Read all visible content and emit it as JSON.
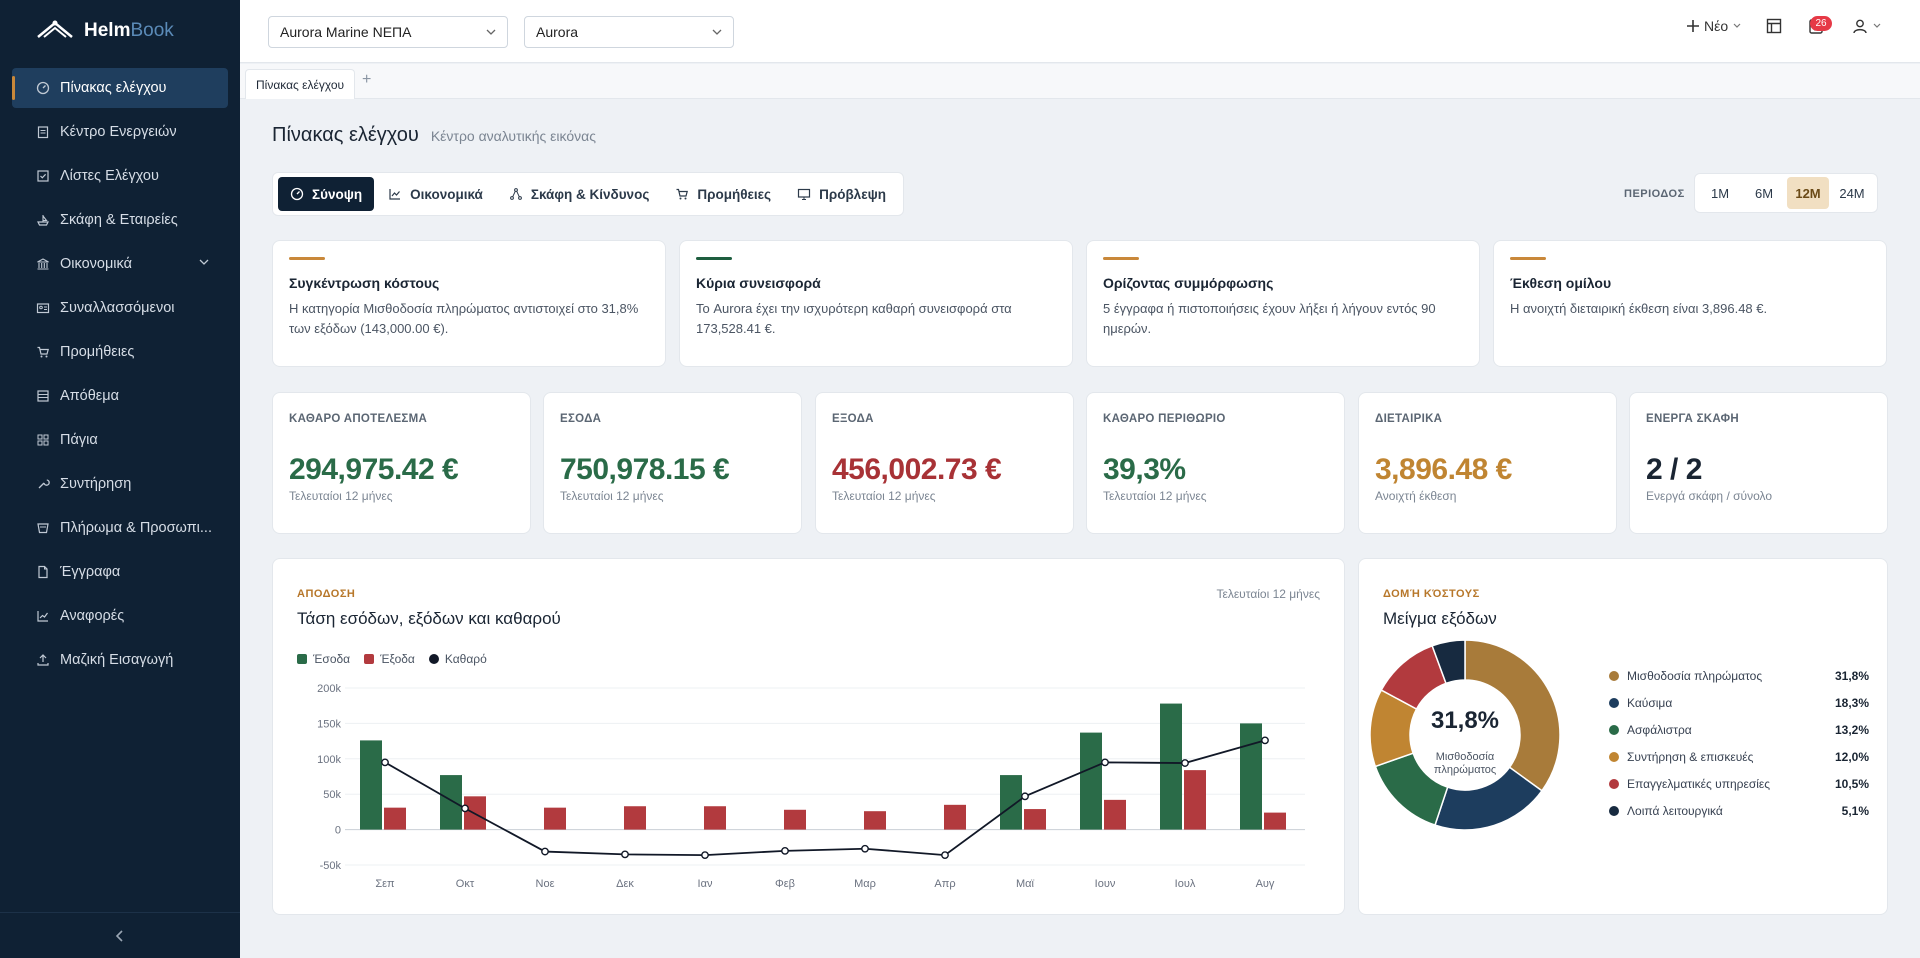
{
  "brand": {
    "name1": "Helm",
    "name2": "Book"
  },
  "sidebar": {
    "items": [
      {
        "label": "Πίνακας ελέγχου",
        "icon": "gauge-icon",
        "active": true
      },
      {
        "label": "Κέντρο Ενεργειών",
        "icon": "clipboard-icon"
      },
      {
        "label": "Λίστες Ελέγχου",
        "icon": "checkbox-icon"
      },
      {
        "label": "Σκάφη & Εταιρείες",
        "icon": "ship-icon"
      },
      {
        "label": "Οικονομικά",
        "icon": "bank-icon",
        "expandable": true
      },
      {
        "label": "Συναλλασσόμενοι",
        "icon": "contact-card-icon"
      },
      {
        "label": "Προμήθειες",
        "icon": "cart-icon"
      },
      {
        "label": "Απόθεμα",
        "icon": "inventory-icon"
      },
      {
        "label": "Πάγια",
        "icon": "grid-icon"
      },
      {
        "label": "Συντήρηση",
        "icon": "wrench-icon"
      },
      {
        "label": "Πλήρωμα & Προσωπι...",
        "icon": "users-icon"
      },
      {
        "label": "Έγγραφα",
        "icon": "document-icon"
      },
      {
        "label": "Αναφορές",
        "icon": "report-chart-icon"
      },
      {
        "label": "Μαζική Εισαγωγή",
        "icon": "upload-icon"
      }
    ]
  },
  "topbar": {
    "company": "Aurora Marine ΝΕΠΑ",
    "vessel": "Aurora",
    "new_label": "Νέο",
    "notifications": "26"
  },
  "tabs": {
    "open": [
      "Πίνακας ελέγχου"
    ],
    "add": "+"
  },
  "page": {
    "title": "Πίνακας ελέγχου",
    "subtitle": "Κέντρο αναλυτικής εικόνας"
  },
  "views": [
    {
      "label": "Σύνοψη",
      "icon": "gauge-icon",
      "active": true
    },
    {
      "label": "Οικονομικά",
      "icon": "line-chart-icon"
    },
    {
      "label": "Σκάφη & Κίνδυνος",
      "icon": "network-icon"
    },
    {
      "label": "Προμήθειες",
      "icon": "cart-icon"
    },
    {
      "label": "Πρόβλεψη",
      "icon": "monitor-icon"
    }
  ],
  "period": {
    "label": "ΠΕΡΙΟΔΟΣ",
    "options": [
      "1M",
      "6M",
      "12M",
      "24M"
    ],
    "selected": "12M"
  },
  "insights": [
    {
      "title": "Συγκέντρωση κόστους",
      "text": "Η κατηγορία Μισθοδοσία πληρώματος αντιστοιχεί στο 31,8% των εξόδων (143,000.00 €).",
      "accent": "#c9883a"
    },
    {
      "title": "Κύρια συνεισφορά",
      "text": "Το Aurora έχει την ισχυρότερη καθαρή συνεισφορά στα 173,528.41 €.",
      "accent": "#1e5e3f"
    },
    {
      "title": "Ορίζοντας συμμόρφωσης",
      "text": "5 έγγραφα ή πιστοποιήσεις έχουν λήξει ή λήγουν εντός 90 ημερών.",
      "accent": "#c9883a"
    },
    {
      "title": "Έκθεση ομίλου",
      "text": "Η ανοιχτή διεταιρική έκθεση είναι 3,896.48 €.",
      "accent": "#c9883a"
    }
  ],
  "kpis": [
    {
      "label": "ΚΑΘΑΡΟ ΑΠΟΤΕΛΕΣΜΑ",
      "value": "294,975.42 €",
      "sub": "Τελευταίοι 12 μήνες",
      "color": "#2a6b48"
    },
    {
      "label": "ΕΣΟΔΑ",
      "value": "750,978.15 €",
      "sub": "Τελευταίοι 12 μήνες",
      "color": "#2a6b48"
    },
    {
      "label": "ΕΞΟΔΑ",
      "value": "456,002.73 €",
      "sub": "Τελευταίοι 12 μήνες",
      "color": "#a83236"
    },
    {
      "label": "ΚΑΘΑΡΟ ΠΕΡΙΘΩΡΙΟ",
      "value": "39,3%",
      "sub": "Τελευταίοι 12 μήνες",
      "color": "#2a6b48"
    },
    {
      "label": "ΔΙΕΤΑΙΡΙΚΑ",
      "value": "3,896.48 €",
      "sub": "Ανοιχτή έκθεση",
      "color": "#c08532"
    },
    {
      "label": "ΕΝΕΡΓΑ ΣΚΑΦΗ",
      "value": "2 / 2",
      "sub": "Ενεργά σκάφη / σύνολο",
      "color": "#1a2533"
    }
  ],
  "trend": {
    "eyebrow": "ΑΠΟΔΟΣΗ",
    "title": "Τάση εσόδων, εξόδων και καθαρού",
    "range": "Τελευταίοι 12 μήνες"
  },
  "mix": {
    "eyebrow": "ΔΟΜΉ ΚΌΣΤΟΥΣ",
    "title": "Μείγμα εξόδων",
    "center_value": "31,8%",
    "center_label": "Μισθοδοσία πληρώματος"
  },
  "chart_data": [
    {
      "type": "bar",
      "categories": [
        "Σεπ",
        "Οκτ",
        "Νοε",
        "Δεκ",
        "Ιαν",
        "Φεβ",
        "Μαρ",
        "Απρ",
        "Μαϊ",
        "Ιουν",
        "Ιουλ",
        "Αυγ"
      ],
      "series": [
        {
          "name": "Έσοδα",
          "type": "bar",
          "color": "#2a6b48",
          "values": [
            126000,
            77000,
            0,
            0,
            0,
            0,
            0,
            0,
            77000,
            137000,
            178000,
            150000
          ]
        },
        {
          "name": "Έξοδα",
          "type": "bar",
          "color": "#b23a3e",
          "values": [
            31000,
            47000,
            31000,
            33000,
            33000,
            28000,
            26000,
            35000,
            29000,
            42000,
            84000,
            24000
          ]
        },
        {
          "name": "Καθαρό",
          "type": "line",
          "color": "#111827",
          "values": [
            95000,
            30000,
            -31000,
            -35000,
            -36000,
            -30000,
            -27000,
            -36000,
            47000,
            95000,
            94000,
            126000
          ]
        }
      ],
      "ylim": [
        -50000,
        200000
      ],
      "yticks": [
        "-50k",
        "0",
        "50k",
        "100k",
        "150k",
        "200k"
      ],
      "yticks_values": [
        -50000,
        0,
        50000,
        100000,
        150000,
        200000
      ],
      "grid": true,
      "legend": "top-left"
    },
    {
      "type": "pie",
      "categories": [
        "Μισθοδοσία πληρώματος",
        "Καύσιμα",
        "Ασφάλιστρα",
        "Συντήρηση & επισκευές",
        "Επαγγελματικές υπηρεσίες",
        "Λοιπά λειτουργικά"
      ],
      "values": [
        31.8,
        18.3,
        13.2,
        12.0,
        10.5,
        5.1
      ],
      "labels": [
        "31,8%",
        "18,3%",
        "13,2%",
        "12,0%",
        "10,5%",
        "5,1%"
      ],
      "colors": [
        "#a87b3a",
        "#1d3d5e",
        "#2a6b48",
        "#c08532",
        "#b23a3e",
        "#172a40"
      ],
      "legend": "right"
    }
  ]
}
